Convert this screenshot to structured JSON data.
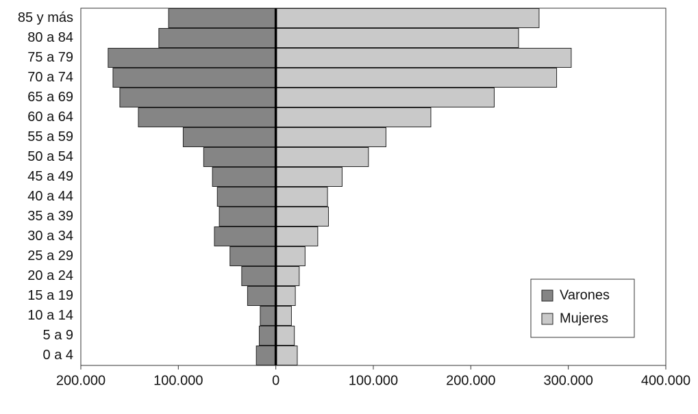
{
  "chart_data": {
    "type": "pyramid",
    "categories": [
      "85 y más",
      "80 a 84",
      "75 a 79",
      "70 a 74",
      "65 a 69",
      "60 a 64",
      "55 a 59",
      "50 a 54",
      "45 a 49",
      "40 a 44",
      "35 a 39",
      "30 a 34",
      "25 a 29",
      "20 a 24",
      "15 a 19",
      "10 a 14",
      "5 a 9",
      "0 a 4"
    ],
    "series": [
      {
        "name": "Varones",
        "color": "#858585",
        "values": [
          -110000,
          -120000,
          -172000,
          -167000,
          -160000,
          -141000,
          -95000,
          -74000,
          -65000,
          -60000,
          -58000,
          -63000,
          -47000,
          -35000,
          -29000,
          -16000,
          -17000,
          -20000
        ]
      },
      {
        "name": "Mujeres",
        "color": "#c9c9c9",
        "values": [
          270000,
          249000,
          303000,
          288000,
          224000,
          159000,
          113000,
          95000,
          68000,
          53000,
          54000,
          43000,
          30000,
          24000,
          20000,
          16000,
          19000,
          22000
        ]
      }
    ],
    "xlim": [
      -200000,
      400000
    ],
    "xticks": [
      {
        "value": -200000,
        "label": "200.000"
      },
      {
        "value": -100000,
        "label": "100.000"
      },
      0,
      {
        "value": 100000,
        "label": "100.000"
      },
      {
        "value": 200000,
        "label": "200.000"
      },
      {
        "value": 300000,
        "label": "300.000"
      },
      {
        "value": 400000,
        "label": "400.000"
      }
    ],
    "legend": "lower right"
  }
}
